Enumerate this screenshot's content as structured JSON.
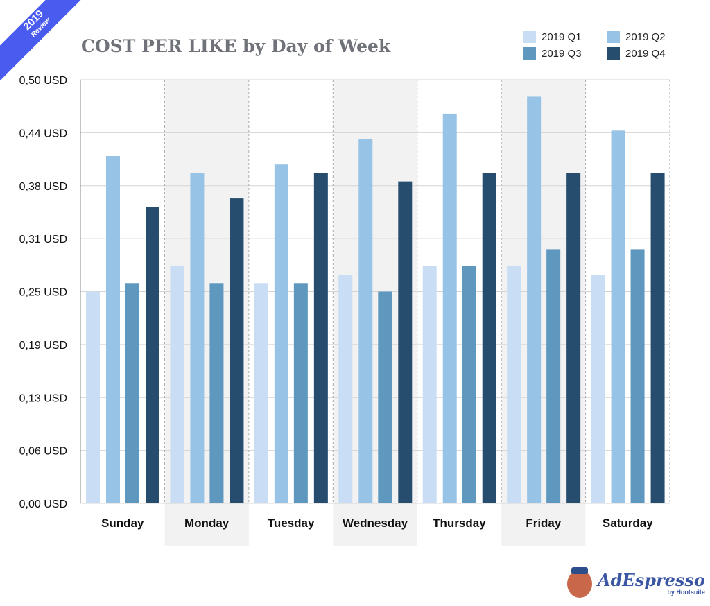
{
  "badge": {
    "year": "2019",
    "label": "Review"
  },
  "logo": {
    "name": "AdEspresso",
    "sub": "by Hootsuite"
  },
  "chart_data": {
    "type": "bar",
    "title": "COST PER LIKE by Day of Week",
    "xlabel": "",
    "ylabel": "",
    "ylim": [
      0,
      0.5
    ],
    "yticks": [
      "0,00 USD",
      "0,06 USD",
      "0,13 USD",
      "0,19 USD",
      "0,25 USD",
      "0,31 USD",
      "0,38 USD",
      "0,44 USD",
      "0,50 USD"
    ],
    "grid": true,
    "legend_position": "top-right",
    "categories": [
      "Sunday",
      "Monday",
      "Tuesday",
      "Wednesday",
      "Thursday",
      "Friday",
      "Saturday"
    ],
    "series": [
      {
        "name": "2019 Q1",
        "color": "#c9def5",
        "values": [
          0.25,
          0.28,
          0.26,
          0.27,
          0.28,
          0.28,
          0.27
        ]
      },
      {
        "name": "2019 Q2",
        "color": "#97c3e6",
        "values": [
          0.41,
          0.39,
          0.4,
          0.43,
          0.46,
          0.48,
          0.44
        ]
      },
      {
        "name": "2019 Q3",
        "color": "#5f98bf",
        "values": [
          0.26,
          0.26,
          0.26,
          0.25,
          0.28,
          0.3,
          0.3
        ]
      },
      {
        "name": "2019 Q4",
        "color": "#264d6e",
        "values": [
          0.35,
          0.36,
          0.39,
          0.38,
          0.39,
          0.39,
          0.39
        ]
      }
    ]
  }
}
